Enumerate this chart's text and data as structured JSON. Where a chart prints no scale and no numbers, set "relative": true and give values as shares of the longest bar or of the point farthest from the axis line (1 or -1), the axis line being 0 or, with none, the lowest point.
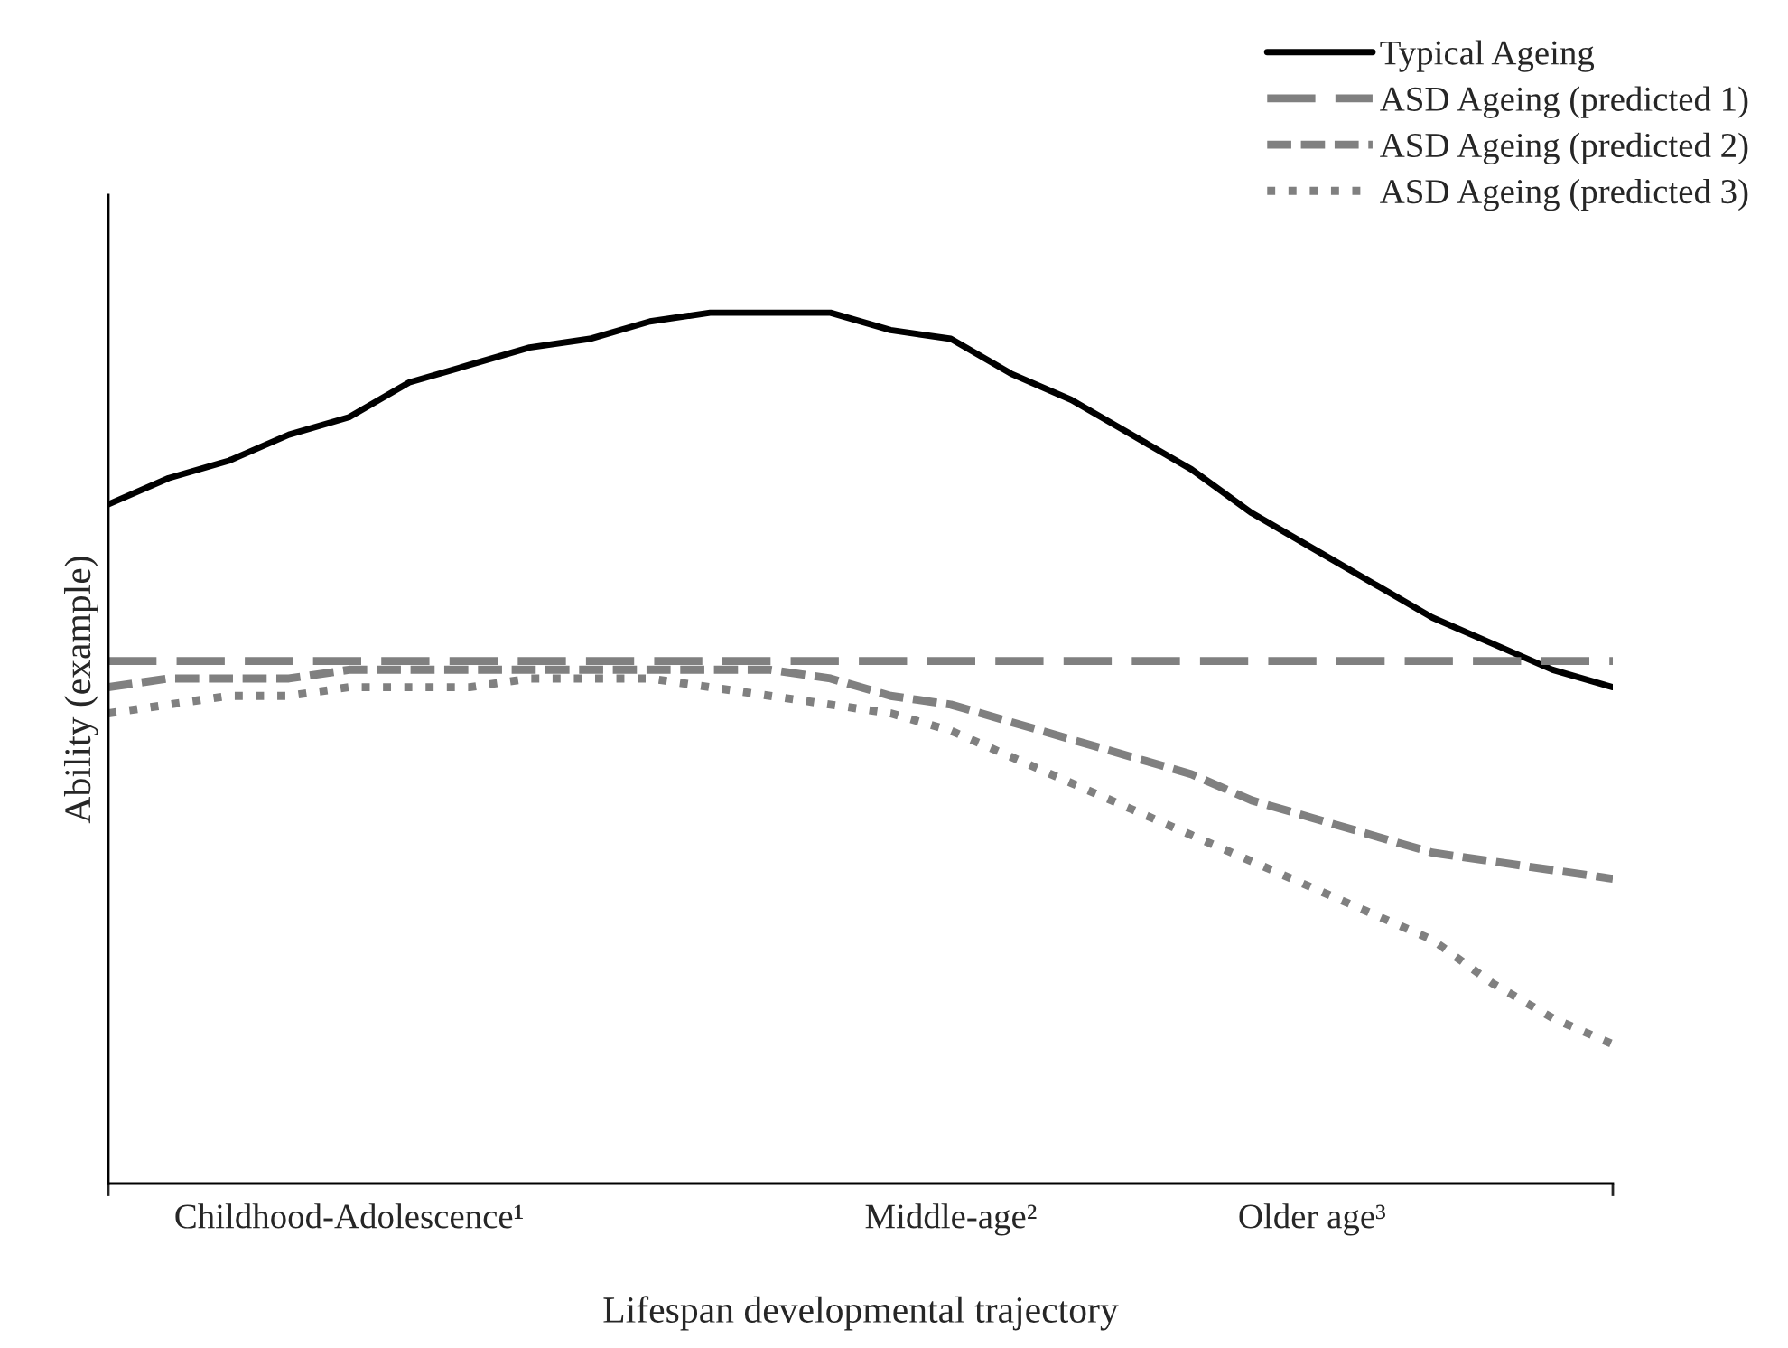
{
  "chart_data": {
    "type": "line",
    "relative": true,
    "xlabel": "Lifespan developmental trajectory",
    "ylabel": "Ability (example)",
    "categories": [
      null,
      null,
      null,
      null,
      "Childhood-Adolescence¹",
      null,
      null,
      null,
      null,
      null,
      null,
      null,
      null,
      null,
      "Middle-age²",
      null,
      null,
      null,
      null,
      null,
      "Older age³",
      null,
      null,
      null,
      null,
      null
    ],
    "series": [
      {
        "name": "Typical Ageing",
        "color": "#000000",
        "line_style": "solid",
        "values": [
          0.78,
          0.81,
          0.83,
          0.86,
          0.88,
          0.92,
          0.94,
          0.96,
          0.97,
          0.99,
          1.0,
          1.0,
          1.0,
          0.98,
          0.97,
          0.93,
          0.9,
          0.86,
          0.82,
          0.77,
          0.73,
          0.69,
          0.65,
          0.62,
          0.59,
          0.57
        ]
      },
      {
        "name": "ASD Ageing (predicted 1)",
        "color": "#808080",
        "line_style": "dashed",
        "values": [
          0.6,
          0.6,
          0.6,
          0.6,
          0.6,
          0.6,
          0.6,
          0.6,
          0.6,
          0.6,
          0.6,
          0.6,
          0.6,
          0.6,
          0.6,
          0.6,
          0.6,
          0.6,
          0.6,
          0.6,
          0.6,
          0.6,
          0.6,
          0.6,
          0.6,
          0.6
        ]
      },
      {
        "name": "ASD Ageing (predicted 2)",
        "color": "#808080",
        "line_style": "dashed",
        "values": [
          0.57,
          0.58,
          0.58,
          0.58,
          0.59,
          0.59,
          0.59,
          0.59,
          0.59,
          0.59,
          0.59,
          0.59,
          0.58,
          0.56,
          0.55,
          0.53,
          0.51,
          0.49,
          0.47,
          0.44,
          0.42,
          0.4,
          0.38,
          0.37,
          0.36,
          0.35
        ]
      },
      {
        "name": "ASD Ageing (predicted 3)",
        "color": "#808080",
        "line_style": "dotted",
        "values": [
          0.54,
          0.55,
          0.56,
          0.56,
          0.57,
          0.57,
          0.57,
          0.58,
          0.58,
          0.58,
          0.57,
          0.56,
          0.55,
          0.54,
          0.52,
          0.49,
          0.46,
          0.43,
          0.4,
          0.37,
          0.34,
          0.31,
          0.28,
          0.23,
          0.19,
          0.16
        ]
      }
    ],
    "legend": "top right",
    "grid": false
  }
}
